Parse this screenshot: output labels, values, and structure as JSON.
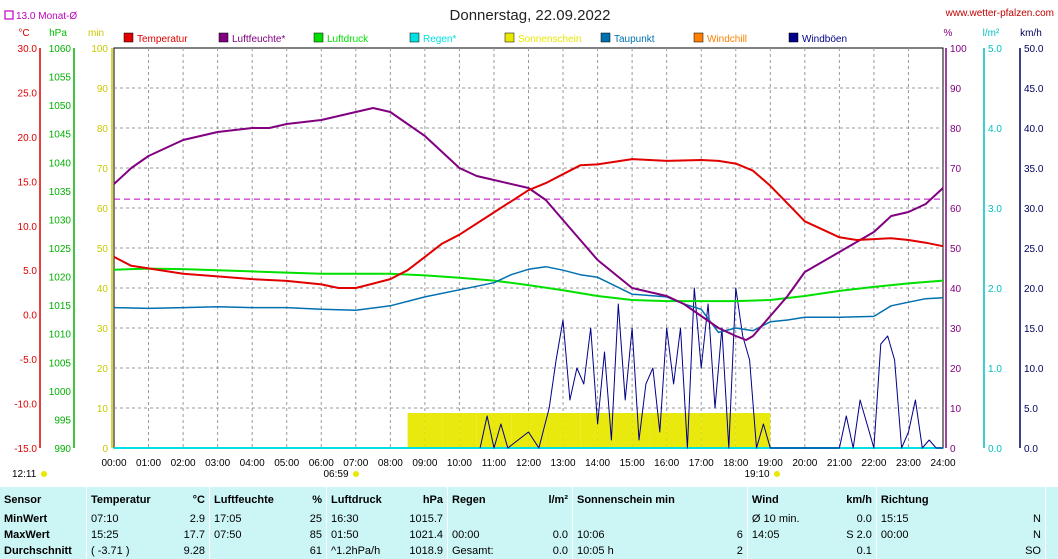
{
  "header": {
    "date_title": "Donnerstag, 22.09.2022",
    "site": "www.wetter-pfalzen.com",
    "monthly_avg": "13.0 Monat-Ø"
  },
  "colors": {
    "temperatur": "#e00000",
    "luftfeuchte": "#800080",
    "luftdruck": "#00e000",
    "regen": "#00e0e0",
    "sonnenschein": "#e8e800",
    "taupunkt": "#0070b0",
    "windchill": "#ff8000",
    "windboeen": "#00008b",
    "avg_line": "#c000c0"
  },
  "chart_data": {
    "type": "line",
    "title": "Donnerstag, 22.09.2022",
    "legend": [
      {
        "name": "Temperatur",
        "color": "#e00000"
      },
      {
        "name": "Luftfeuchte*",
        "color": "#800080"
      },
      {
        "name": "Luftdruck",
        "color": "#00e000"
      },
      {
        "name": "Regen*",
        "color": "#00e0e0"
      },
      {
        "name": "Sonnenschein",
        "color": "#e8e800"
      },
      {
        "name": "Taupunkt",
        "color": "#0070b0"
      },
      {
        "name": "Windchill",
        "color": "#ff8000"
      },
      {
        "name": "Windböen",
        "color": "#00008b"
      }
    ],
    "axes": {
      "temp": {
        "unit": "°C",
        "min": -15,
        "max": 30,
        "ticks": [
          "30.0",
          "25.0",
          "20.0",
          "15.0",
          "10.0",
          "5.0",
          "0.0",
          "-5.0",
          "-10.0",
          "-15.0"
        ]
      },
      "pressure": {
        "unit": "hPa",
        "min": 990,
        "max": 1060,
        "ticks": [
          "1060",
          "1055",
          "1050",
          "1045",
          "1040",
          "1035",
          "1030",
          "1025",
          "1020",
          "1015",
          "1010",
          "1005",
          "1000",
          "995",
          "990"
        ]
      },
      "sun": {
        "unit": "min",
        "min": 0,
        "max": 100,
        "ticks": [
          "100",
          "90",
          "80",
          "70",
          "60",
          "50",
          "40",
          "30",
          "20",
          "10",
          "0"
        ]
      },
      "humidity": {
        "unit": "%",
        "min": 0,
        "max": 100,
        "ticks": [
          "100",
          "90",
          "80",
          "70",
          "60",
          "50",
          "40",
          "30",
          "20",
          "10",
          "0"
        ]
      },
      "rain": {
        "unit": "l/m²",
        "min": 0,
        "max": 5,
        "ticks": [
          "5.0",
          "4.0",
          "3.0",
          "2.0",
          "1.0",
          "0.0"
        ]
      },
      "wind": {
        "unit": "km/h",
        "min": 0,
        "max": 50,
        "ticks": [
          "50.0",
          "45.0",
          "40.0",
          "35.0",
          "30.0",
          "25.0",
          "20.0",
          "15.0",
          "10.0",
          "5.0",
          "0.0"
        ]
      }
    },
    "x_ticks": [
      "00:00",
      "01:00",
      "02:00",
      "03:00",
      "04:00",
      "05:00",
      "06:00",
      "07:00",
      "08:00",
      "09:00",
      "10:00",
      "11:00",
      "12:00",
      "13:00",
      "14:00",
      "15:00",
      "16:00",
      "17:00",
      "18:00",
      "19:00",
      "20:00",
      "21:00",
      "22:00",
      "23:00",
      "24:00"
    ],
    "sunrise": "06:59",
    "sunset": "19:10",
    "day_length": "12:11",
    "monthly_avg_temp": 13.0,
    "series": [
      {
        "name": "Temperatur",
        "x": [
          0,
          0.5,
          1,
          2,
          3,
          4,
          5,
          6,
          6.5,
          7,
          7.5,
          8,
          8.5,
          9,
          9.5,
          10,
          11,
          12,
          12.5,
          13,
          13.5,
          14,
          15,
          16,
          17,
          17.5,
          18,
          18.5,
          19,
          19.5,
          20,
          21,
          21.5,
          22,
          22.5,
          23,
          23.5,
          24
        ],
        "y": [
          6.5,
          5.5,
          5.2,
          4.6,
          4.3,
          4.0,
          3.8,
          3.4,
          3.0,
          3.0,
          3.5,
          4.0,
          5.0,
          6.5,
          8.0,
          9.0,
          11.5,
          14.0,
          14.8,
          15.8,
          16.8,
          16.9,
          17.5,
          17.3,
          17.4,
          17.3,
          17.0,
          16.2,
          14.5,
          12.5,
          10.5,
          8.7,
          8.4,
          8.5,
          8.6,
          8.4,
          8.1,
          7.7
        ]
      },
      {
        "name": "Luftfeuchte*",
        "x": [
          0,
          0.5,
          1,
          2,
          3,
          4,
          4.5,
          5,
          6,
          7,
          7.5,
          8,
          8.5,
          9,
          10,
          10.5,
          11,
          12,
          12.5,
          13,
          13.5,
          14,
          15,
          15.5,
          16,
          16.5,
          17,
          17.5,
          18,
          18.3,
          18.5,
          19,
          19.5,
          20,
          21,
          22,
          22.5,
          23,
          23.5,
          24
        ],
        "y": [
          66,
          70,
          73,
          77,
          79,
          80,
          80,
          81,
          82,
          84,
          85,
          84,
          81,
          78,
          70,
          68,
          67,
          65,
          62,
          57,
          52,
          47,
          40,
          39,
          38,
          36,
          33,
          30,
          28,
          27,
          28,
          33,
          38,
          44,
          49,
          54,
          58,
          59,
          61,
          65
        ]
      },
      {
        "name": "Luftdruck",
        "x": [
          0,
          1,
          2,
          3,
          4,
          5,
          6,
          7,
          8,
          9,
          10,
          11,
          12,
          13,
          14,
          15,
          16,
          17,
          18,
          19,
          20,
          21,
          22,
          23,
          24
        ],
        "y": [
          1021.2,
          1021.4,
          1021.3,
          1021.1,
          1020.9,
          1020.7,
          1020.5,
          1020.5,
          1020.5,
          1020.2,
          1019.8,
          1019.3,
          1018.5,
          1017.6,
          1016.6,
          1015.9,
          1015.7,
          1015.7,
          1015.7,
          1015.9,
          1016.6,
          1017.5,
          1018.2,
          1018.8,
          1019.3
        ]
      },
      {
        "name": "Taupunkt",
        "x": [
          0,
          1,
          2,
          3,
          4,
          5,
          6,
          7,
          8,
          9,
          10,
          11,
          11.5,
          12,
          12.5,
          13,
          13.5,
          14,
          15,
          16,
          16.5,
          17,
          17.5,
          18,
          18.5,
          19,
          19.5,
          20,
          21,
          22,
          22.5,
          23,
          23.5,
          24
        ],
        "y": [
          0.8,
          0.7,
          0.8,
          0.9,
          0.8,
          0.8,
          0.6,
          0.5,
          1.0,
          2.0,
          2.8,
          3.6,
          4.5,
          5.1,
          5.4,
          5.0,
          4.5,
          4.2,
          2.3,
          2.0,
          1.2,
          0.6,
          -2.0,
          -1.5,
          -1.8,
          -0.8,
          -0.6,
          -0.3,
          -0.3,
          -0.2,
          1.0,
          1.4,
          1.8,
          1.9
        ]
      },
      {
        "name": "Windböen",
        "x": [
          10.6,
          10.8,
          11.0,
          11.2,
          11.4,
          11.7,
          12.0,
          12.3,
          12.6,
          12.8,
          13.0,
          13.2,
          13.4,
          13.6,
          13.8,
          14.0,
          14.2,
          14.4,
          14.6,
          14.8,
          15.0,
          15.2,
          15.4,
          15.6,
          15.8,
          16.0,
          16.2,
          16.4,
          16.6,
          16.8,
          17.0,
          17.2,
          17.4,
          17.6,
          17.8,
          18.0,
          18.2,
          18.4,
          18.6,
          18.8,
          19.0,
          19.2,
          19.4,
          21.0,
          21.2,
          21.4,
          21.6,
          21.8,
          22.0,
          22.2,
          22.4,
          22.6,
          22.8,
          23.0,
          23.2,
          23.4,
          23.6,
          23.8,
          24.0
        ],
        "y": [
          0,
          4,
          0,
          3,
          0,
          1,
          2,
          0,
          5,
          11,
          16,
          6,
          10,
          8,
          15,
          3,
          12,
          1,
          18,
          6,
          15,
          1,
          8,
          10,
          2,
          15,
          8,
          15,
          0,
          20,
          10,
          18,
          5,
          15,
          0,
          20,
          14,
          11,
          0,
          3,
          0,
          0,
          0,
          0,
          4,
          0,
          6,
          3,
          0,
          13,
          14,
          11,
          0,
          2,
          6,
          0,
          1,
          0,
          0
        ]
      },
      {
        "name": "Sonnenschein",
        "x": [
          8.5,
          9.0,
          9.5,
          10.0,
          10.5,
          11.0,
          11.5,
          12.0,
          12.5,
          13.0,
          13.5,
          14.0,
          14.5,
          15.0,
          15.5,
          16.0,
          16.5,
          17.0,
          17.5,
          18.0,
          18.5,
          19.0
        ],
        "y": [
          5,
          5,
          5,
          5,
          5,
          5,
          5,
          5,
          5,
          5,
          5,
          5,
          5,
          5,
          5,
          5,
          5,
          5,
          5,
          5,
          5,
          0
        ]
      },
      {
        "name": "Regen*",
        "x": [
          0,
          24
        ],
        "y": [
          0,
          0
        ]
      }
    ]
  },
  "stats": {
    "headers": {
      "sensor": "Sensor",
      "temp": "Temperatur",
      "temp_unit": "°C",
      "hum": "Luftfeuchte",
      "hum_unit": "%",
      "press": "Luftdruck",
      "press_unit": "hPa",
      "rain": "Regen",
      "rain_unit": "l/m²",
      "sun": "Sonnenschein min",
      "wind": "Wind",
      "wind_unit": "km/h",
      "dir": "Richtung"
    },
    "rows": [
      {
        "label": "MinWert",
        "t_time": "07:10",
        "t_val": "2.9",
        "h_time": "17:05",
        "h_val": "25",
        "p_time": "16:30",
        "p_val": "1015.7",
        "r_time": "",
        "r_val": "",
        "s_time": "",
        "s_val": "",
        "w_time": "Ø 10 min.",
        "w_val": "0.0",
        "d_time": "15:15",
        "d_val": "N"
      },
      {
        "label": "MaxWert",
        "t_time": "15:25",
        "t_val": "17.7",
        "h_time": "07:50",
        "h_val": "85",
        "p_time": "01:50",
        "p_val": "1021.4",
        "r_time": "00:00",
        "r_val": "0.0",
        "s_time": "10:06",
        "s_val": "6",
        "w_time": "14:05",
        "w_val": "S 2.0",
        "d_time": "00:00",
        "d_val": "N"
      },
      {
        "label": "Durchschnitt",
        "t_time": "( -3.71 )",
        "t_val": "9.28",
        "h_time": "",
        "h_val": "61",
        "p_time": "^1.2hPa/h",
        "p_val": "1018.9",
        "r_time": "Gesamt:",
        "r_val": "0.0",
        "s_time": "10:05 h",
        "s_val": "2",
        "w_time": "",
        "w_val": "0.1",
        "d_time": "",
        "d_val": "SO"
      }
    ]
  }
}
